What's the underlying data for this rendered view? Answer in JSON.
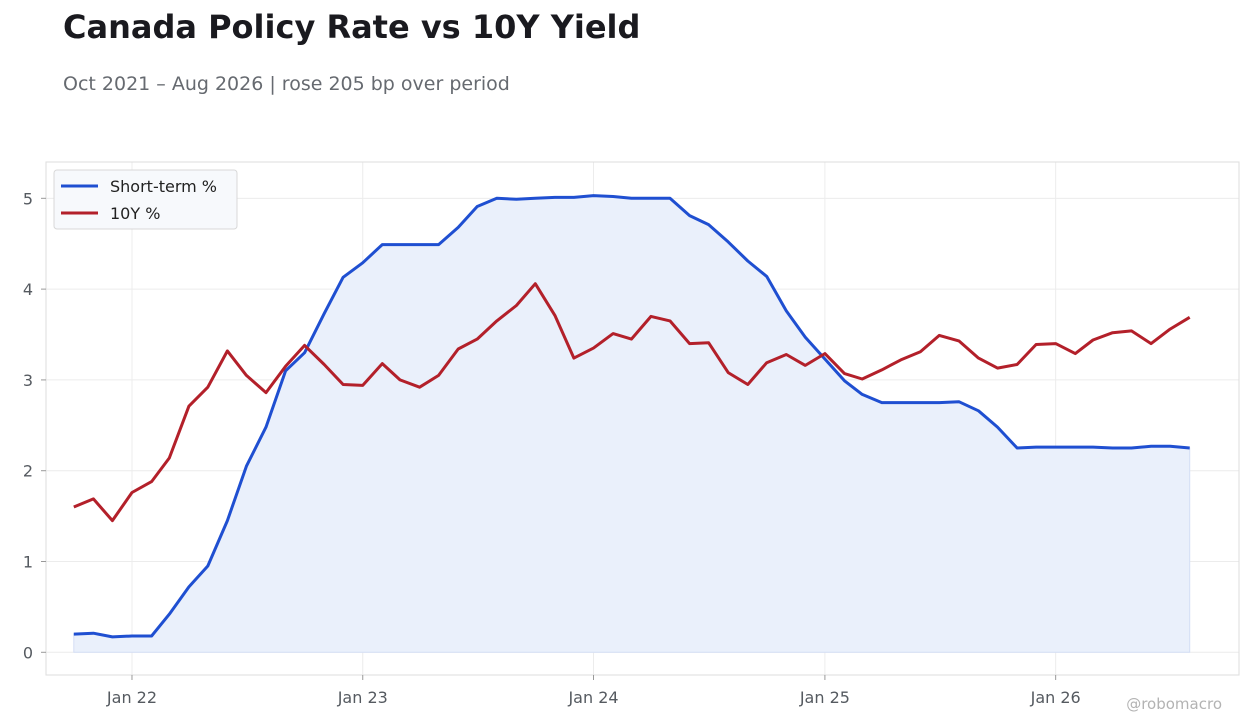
{
  "title": "Canada Policy Rate vs 10Y Yield",
  "subtitle": "Oct 2021 – Aug 2026 | rose 205 bp over period",
  "watermark": "@robomacro",
  "colors": {
    "short_term": "#1f4fd1",
    "ten_year": "#b3202a",
    "fill": "#eaf0fb",
    "grid": "#ececec",
    "axis": "#dddddd"
  },
  "chart_data": {
    "type": "line",
    "title": "Canada Policy Rate vs 10Y Yield",
    "subtitle": "Oct 2021 – Aug 2026 | rose 205 bp over period",
    "xlabel": "",
    "ylabel": "",
    "x_start": "2021-10",
    "x_end": "2026-08",
    "x_step": "monthly",
    "xlim": [
      "2021-08-18",
      "2026-10-18"
    ],
    "ylim": [
      -0.25,
      5.4
    ],
    "x_ticks": [
      {
        "date": "2022-01-01",
        "label": "Jan 22"
      },
      {
        "date": "2023-01-01",
        "label": "Jan 23"
      },
      {
        "date": "2024-01-01",
        "label": "Jan 24"
      },
      {
        "date": "2025-01-01",
        "label": "Jan 25"
      },
      {
        "date": "2026-01-01",
        "label": "Jan 26"
      }
    ],
    "y_ticks": [
      0,
      1,
      2,
      3,
      4,
      5
    ],
    "grid": true,
    "legend_position": "top-left",
    "series": [
      {
        "name": "Short-term %",
        "color": "#1f4fd1",
        "fill": true,
        "values": [
          0.2,
          0.21,
          0.17,
          0.18,
          0.18,
          0.42,
          0.72,
          0.95,
          1.45,
          2.05,
          2.48,
          3.1,
          3.3,
          3.73,
          4.13,
          4.29,
          4.49,
          4.49,
          4.49,
          4.49,
          4.68,
          4.91,
          5.0,
          4.99,
          5.0,
          5.01,
          5.01,
          5.03,
          5.02,
          5.0,
          5.0,
          5.0,
          4.81,
          4.71,
          4.52,
          4.31,
          4.14,
          3.76,
          3.47,
          3.23,
          2.99,
          2.84,
          2.75,
          2.75,
          2.75,
          2.75,
          2.76,
          2.66,
          2.48,
          2.25,
          2.26,
          2.26,
          2.26,
          2.26,
          2.25,
          2.25,
          2.27,
          2.27,
          2.25
        ]
      },
      {
        "name": "10Y %",
        "color": "#b3202a",
        "fill": false,
        "values": [
          1.6,
          1.69,
          1.45,
          1.76,
          1.88,
          2.14,
          2.71,
          2.92,
          3.32,
          3.05,
          2.86,
          3.15,
          3.38,
          3.17,
          2.95,
          2.94,
          3.18,
          3.0,
          2.92,
          3.05,
          3.34,
          3.45,
          3.65,
          3.82,
          4.06,
          3.71,
          3.24,
          3.35,
          3.51,
          3.45,
          3.7,
          3.65,
          3.4,
          3.41,
          3.08,
          2.95,
          3.19,
          3.28,
          3.16,
          3.29,
          3.07,
          3.01,
          3.11,
          3.22,
          3.31,
          3.49,
          3.43,
          3.24,
          3.13,
          3.17,
          3.39,
          3.4,
          3.29,
          3.44,
          3.52,
          3.54,
          3.4,
          3.56,
          3.69
        ]
      }
    ]
  }
}
